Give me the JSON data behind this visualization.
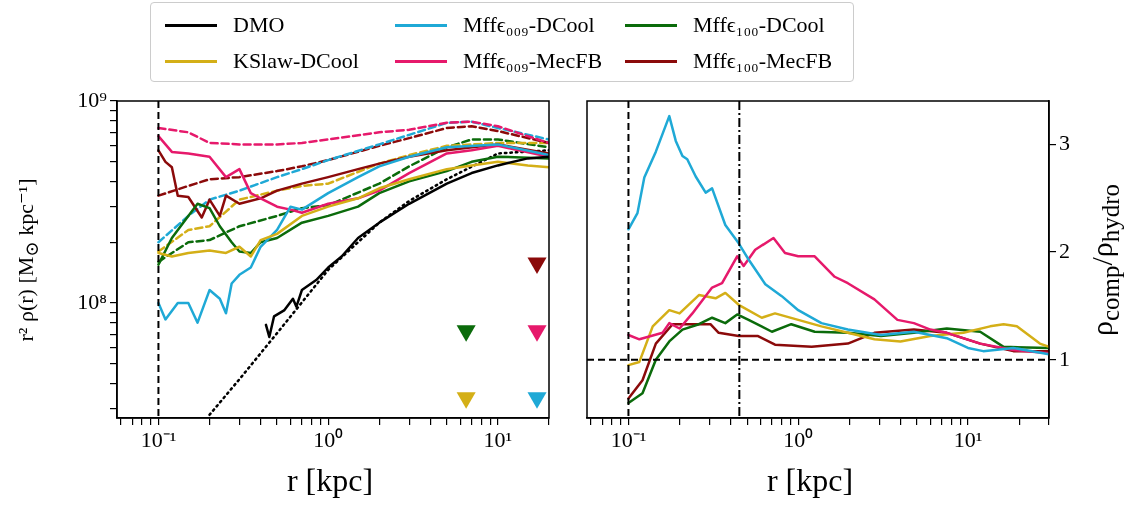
{
  "chart_data": [
    {
      "type": "line",
      "xlabel": "r [kpc]",
      "ylabel": "r² ρ(r) [M$_{⊙}$ kpc⁻¹]",
      "log": "xy",
      "grid": false,
      "legend": "top",
      "xlim": [
        0.057,
        20
      ],
      "ylim": [
        27000000.0,
        1000000000.0
      ],
      "xticks": [
        {
          "value": 0.06,
          "label": null
        },
        {
          "value": 0.07,
          "label": null
        },
        {
          "value": 0.08,
          "label": null
        },
        {
          "value": 0.09,
          "label": null
        },
        {
          "value": 0.1,
          "label": "10⁻¹"
        },
        {
          "value": 0.2,
          "label": null
        },
        {
          "value": 0.3,
          "label": null
        },
        {
          "value": 0.4,
          "label": null
        },
        {
          "value": 0.5,
          "label": null
        },
        {
          "value": 0.6,
          "label": null
        },
        {
          "value": 0.7,
          "label": null
        },
        {
          "value": 0.8,
          "label": null
        },
        {
          "value": 0.9,
          "label": null
        },
        {
          "value": 1,
          "label": "10⁰"
        },
        {
          "value": 2,
          "label": null
        },
        {
          "value": 3,
          "label": null
        },
        {
          "value": 4,
          "label": null
        },
        {
          "value": 5,
          "label": null
        },
        {
          "value": 6,
          "label": null
        },
        {
          "value": 7,
          "label": null
        },
        {
          "value": 8,
          "label": null
        },
        {
          "value": 9,
          "label": null
        },
        {
          "value": 10,
          "label": "10¹"
        },
        {
          "value": 20,
          "label": null
        }
      ],
      "yticks": [
        {
          "value": 30000000.0,
          "label": null
        },
        {
          "value": 40000000.0,
          "label": null
        },
        {
          "value": 50000000.0,
          "label": null
        },
        {
          "value": 60000000.0,
          "label": null
        },
        {
          "value": 70000000.0,
          "label": null
        },
        {
          "value": 80000000.0,
          "label": null
        },
        {
          "value": 90000000.0,
          "label": null
        },
        {
          "value": 100000000.0,
          "label": "10⁸"
        },
        {
          "value": 200000000.0,
          "label": null
        },
        {
          "value": 300000000.0,
          "label": null
        },
        {
          "value": 400000000.0,
          "label": null
        },
        {
          "value": 500000000.0,
          "label": null
        },
        {
          "value": 600000000.0,
          "label": null
        },
        {
          "value": 700000000.0,
          "label": null
        },
        {
          "value": 800000000.0,
          "label": null
        },
        {
          "value": 900000000.0,
          "label": null
        },
        {
          "value": 1000000000.0,
          "label": "10⁹"
        }
      ],
      "ref_lines": [
        {
          "axis": "x",
          "value": 0.1,
          "color": "#000000",
          "line_style": "dashed"
        }
      ],
      "series": [
        {
          "name": "DMO",
          "color": "#000000",
          "line_style": "solid",
          "x": [
            0.43,
            0.45,
            0.48,
            0.55,
            0.62,
            0.65,
            0.7,
            0.85,
            1,
            1.2,
            1.5,
            2,
            3,
            5,
            7,
            10,
            15,
            20
          ],
          "values": [
            78000000.0,
            68000000.0,
            86000000.0,
            92000000.0,
            105000000.0,
            96000000.0,
            116000000.0,
            130000000.0,
            150000000.0,
            170000000.0,
            210000000.0,
            250000000.0,
            310000000.0,
            390000000.0,
            440000000.0,
            480000000.0,
            520000000.0,
            530000000.0
          ]
        },
        {
          "name": "KSlaw-DCool",
          "color": "#d4af17",
          "line_style": "solid",
          "x": [
            0.1,
            0.12,
            0.15,
            0.2,
            0.25,
            0.3,
            0.35,
            0.4,
            0.5,
            0.7,
            1,
            1.5,
            2,
            3,
            5,
            7,
            10,
            15,
            20
          ],
          "values": [
            177000000.0,
            170000000.0,
            177000000.0,
            182000000.0,
            177000000.0,
            190000000.0,
            170000000.0,
            205000000.0,
            220000000.0,
            270000000.0,
            300000000.0,
            330000000.0,
            370000000.0,
            410000000.0,
            460000000.0,
            480000000.0,
            500000000.0,
            480000000.0,
            470000000.0
          ]
        },
        {
          "name": "Mffϵ₀₀₉-DCool",
          "color": "#1fa9d6",
          "line_style": "solid",
          "x": [
            0.1,
            0.11,
            0.13,
            0.15,
            0.17,
            0.2,
            0.23,
            0.25,
            0.27,
            0.3,
            0.35,
            0.4,
            0.5,
            0.6,
            0.7,
            1,
            1.5,
            2,
            3,
            5,
            10,
            20
          ],
          "values": [
            100000000.0,
            83000000.0,
            100000000.0,
            100000000.0,
            80000000.0,
            116000000.0,
            105000000.0,
            89000000.0,
            125000000.0,
            138000000.0,
            150000000.0,
            190000000.0,
            230000000.0,
            300000000.0,
            290000000.0,
            350000000.0,
            420000000.0,
            475000000.0,
            530000000.0,
            590000000.0,
            610000000.0,
            540000000.0
          ]
        },
        {
          "name": "Mffϵ₀₀₉-MecFB",
          "color": "#e6196b",
          "line_style": "solid",
          "x": [
            0.1,
            0.12,
            0.15,
            0.2,
            0.25,
            0.3,
            0.35,
            0.4,
            0.5,
            0.6,
            0.7,
            1,
            1.5,
            2,
            3,
            5,
            7,
            10,
            20
          ],
          "values": [
            670000000.0,
            560000000.0,
            550000000.0,
            530000000.0,
            420000000.0,
            460000000.0,
            350000000.0,
            330000000.0,
            300000000.0,
            290000000.0,
            280000000.0,
            310000000.0,
            330000000.0,
            360000000.0,
            440000000.0,
            550000000.0,
            570000000.0,
            600000000.0,
            530000000.0
          ]
        },
        {
          "name": "Mffϵ₁₀₀-DCool",
          "color": "#0b6b0b",
          "line_style": "solid",
          "x": [
            0.1,
            0.12,
            0.14,
            0.17,
            0.2,
            0.23,
            0.27,
            0.3,
            0.35,
            0.4,
            0.5,
            0.7,
            1,
            1.5,
            2,
            3,
            5,
            7,
            10,
            20
          ],
          "values": [
            155000000.0,
            210000000.0,
            250000000.0,
            310000000.0,
            295000000.0,
            240000000.0,
            200000000.0,
            180000000.0,
            177000000.0,
            200000000.0,
            210000000.0,
            250000000.0,
            270000000.0,
            300000000.0,
            350000000.0,
            400000000.0,
            450000000.0,
            500000000.0,
            530000000.0,
            520000000.0
          ]
        },
        {
          "name": "Mffϵ₁₀₀-MecFB",
          "color": "#8b0a0a",
          "line_style": "solid",
          "x": [
            0.1,
            0.11,
            0.12,
            0.13,
            0.15,
            0.18,
            0.2,
            0.23,
            0.25,
            0.3,
            0.4,
            0.5,
            0.7,
            1,
            1.5,
            2,
            3,
            5,
            10,
            20
          ],
          "values": [
            570000000.0,
            500000000.0,
            470000000.0,
            340000000.0,
            335000000.0,
            265000000.0,
            325000000.0,
            270000000.0,
            340000000.0,
            310000000.0,
            330000000.0,
            360000000.0,
            390000000.0,
            420000000.0,
            460000000.0,
            490000000.0,
            530000000.0,
            570000000.0,
            610000000.0,
            550000000.0
          ]
        },
        {
          "color": "#000000",
          "line_style": "dotted",
          "x": [
            0.2,
            0.3,
            0.5,
            1,
            2,
            3,
            5,
            10,
            20
          ],
          "values": [
            28000000.0,
            42000000.0,
            71000000.0,
            146000000.0,
            250000000.0,
            320000000.0,
            410000000.0,
            550000000.0,
            570000000.0
          ]
        },
        {
          "color": "#e6196b",
          "line_style": "dashed",
          "x": [
            0.1,
            0.15,
            0.2,
            0.3,
            0.5,
            0.7,
            1,
            2,
            3,
            5,
            7,
            10,
            15,
            20
          ],
          "values": [
            735000000.0,
            700000000.0,
            620000000.0,
            610000000.0,
            610000000.0,
            620000000.0,
            645000000.0,
            700000000.0,
            720000000.0,
            780000000.0,
            790000000.0,
            750000000.0,
            670000000.0,
            620000000.0
          ]
        },
        {
          "color": "#1fa9d6",
          "line_style": "dashed",
          "x": [
            0.1,
            0.15,
            0.2,
            0.3,
            0.5,
            0.7,
            1,
            2,
            3,
            5,
            7,
            10,
            20
          ],
          "values": [
            200000000.0,
            270000000.0,
            325000000.0,
            360000000.0,
            420000000.0,
            460000000.0,
            510000000.0,
            610000000.0,
            680000000.0,
            780000000.0,
            790000000.0,
            735000000.0,
            645000000.0
          ]
        },
        {
          "color": "#8b0a0a",
          "line_style": "dashed",
          "x": [
            0.1,
            0.15,
            0.2,
            0.3,
            0.5,
            0.7,
            1,
            2,
            3,
            5,
            7,
            10,
            20
          ],
          "values": [
            340000000.0,
            380000000.0,
            410000000.0,
            420000000.0,
            450000000.0,
            475000000.0,
            510000000.0,
            600000000.0,
            655000000.0,
            735000000.0,
            750000000.0,
            710000000.0,
            620000000.0
          ]
        },
        {
          "color": "#d4af17",
          "line_style": "dashed",
          "x": [
            0.1,
            0.15,
            0.2,
            0.3,
            0.5,
            0.7,
            1,
            2,
            3,
            5,
            10,
            20
          ],
          "values": [
            180000000.0,
            230000000.0,
            240000000.0,
            325000000.0,
            360000000.0,
            380000000.0,
            390000000.0,
            490000000.0,
            540000000.0,
            600000000.0,
            620000000.0,
            620000000.0
          ]
        },
        {
          "color": "#0b6b0b",
          "line_style": "dashed",
          "x": [
            0.1,
            0.15,
            0.2,
            0.3,
            0.5,
            0.7,
            1,
            2,
            3,
            5,
            7,
            10,
            20
          ],
          "values": [
            160000000.0,
            200000000.0,
            205000000.0,
            240000000.0,
            270000000.0,
            295000000.0,
            305000000.0,
            390000000.0,
            475000000.0,
            590000000.0,
            645000000.0,
            645000000.0,
            590000000.0
          ]
        },
        {
          "type": "scatter",
          "marker": "triangle",
          "color": "#0b6b0b",
          "x": [
            6.5
          ],
          "values": [
            73000000.0
          ]
        },
        {
          "type": "scatter",
          "marker": "triangle",
          "color": "#d4af17",
          "x": [
            6.5
          ],
          "values": [
            34000000.0
          ]
        },
        {
          "type": "scatter",
          "marker": "triangle",
          "color": "#8b0a0a",
          "x": [
            17
          ],
          "values": [
            158000000.0
          ]
        },
        {
          "type": "scatter",
          "marker": "triangle",
          "color": "#e6196b",
          "x": [
            17
          ],
          "values": [
            73000000.0
          ]
        },
        {
          "type": "scatter",
          "marker": "triangle",
          "color": "#1fa9d6",
          "x": [
            17
          ],
          "values": [
            34000000.0
          ]
        }
      ]
    },
    {
      "type": "line",
      "xlabel": "r [kpc]",
      "ylabel": "ρ$_{comp}$/ρ$_{hydro}$",
      "log": "x",
      "grid": false,
      "xlim": [
        0.057,
        30
      ],
      "ylim": [
        0.46,
        3.4
      ],
      "xticks": [
        {
          "value": 0.06,
          "label": null
        },
        {
          "value": 0.07,
          "label": null
        },
        {
          "value": 0.08,
          "label": null
        },
        {
          "value": 0.09,
          "label": null
        },
        {
          "value": 0.1,
          "label": "10⁻¹"
        },
        {
          "value": 0.2,
          "label": null
        },
        {
          "value": 0.3,
          "label": null
        },
        {
          "value": 0.4,
          "label": null
        },
        {
          "value": 0.5,
          "label": null
        },
        {
          "value": 0.6,
          "label": null
        },
        {
          "value": 0.7,
          "label": null
        },
        {
          "value": 0.8,
          "label": null
        },
        {
          "value": 0.9,
          "label": null
        },
        {
          "value": 1,
          "label": "10⁰"
        },
        {
          "value": 2,
          "label": null
        },
        {
          "value": 3,
          "label": null
        },
        {
          "value": 4,
          "label": null
        },
        {
          "value": 5,
          "label": null
        },
        {
          "value": 6,
          "label": null
        },
        {
          "value": 7,
          "label": null
        },
        {
          "value": 8,
          "label": null
        },
        {
          "value": 9,
          "label": null
        },
        {
          "value": 10,
          "label": "10¹"
        },
        {
          "value": 20,
          "label": null
        },
        {
          "value": 30,
          "label": null
        }
      ],
      "yticks": [
        1,
        2,
        3
      ],
      "ref_lines": [
        {
          "axis": "x",
          "value": 0.1,
          "color": "#000000",
          "line_style": "dashed"
        },
        {
          "axis": "x",
          "value": 0.45,
          "color": "#000000",
          "line_style": "dashdot"
        },
        {
          "axis": "y",
          "value": 1,
          "color": "#000000",
          "line_style": "dashed"
        }
      ],
      "series": [
        {
          "color": "#1fa9d6",
          "x": [
            0.1,
            0.113,
            0.124,
            0.145,
            0.174,
            0.19,
            0.208,
            0.222,
            0.249,
            0.285,
            0.311,
            0.372,
            0.446,
            0.51,
            0.64,
            0.8,
            1,
            1.37,
            1.96,
            3.07,
            4.8,
            7.5,
            10,
            12.3,
            18.5,
            30
          ],
          "values": [
            2.21,
            2.36,
            2.69,
            2.93,
            3.26,
            3.03,
            2.89,
            2.86,
            2.7,
            2.55,
            2.59,
            2.25,
            2.08,
            1.93,
            1.7,
            1.59,
            1.46,
            1.34,
            1.28,
            1.23,
            1.26,
            1.2,
            1.11,
            1.08,
            1.11,
            1.05
          ]
        },
        {
          "color": "#e6196b",
          "x": [
            0.1,
            0.116,
            0.159,
            0.174,
            0.2,
            0.238,
            0.311,
            0.356,
            0.437,
            0.477,
            0.558,
            0.715,
            0.836,
            1,
            1.25,
            1.64,
            1.96,
            2.81,
            3.84,
            4.8,
            6,
            7.5,
            11.8,
            18.5,
            30
          ],
          "values": [
            1.23,
            1.19,
            1.25,
            1.34,
            1.29,
            1.43,
            1.67,
            1.71,
            1.96,
            1.87,
            2.02,
            2.13,
            1.99,
            1.96,
            1.96,
            1.77,
            1.71,
            1.56,
            1.37,
            1.34,
            1.28,
            1.25,
            1.15,
            1.09,
            1.06
          ]
        },
        {
          "color": "#d4af17",
          "x": [
            0.1,
            0.116,
            0.139,
            0.174,
            0.2,
            0.26,
            0.326,
            0.372,
            0.446,
            0.61,
            0.73,
            1,
            1.37,
            1.96,
            2.81,
            4,
            6,
            9.4,
            13.5,
            16.2,
            19.4,
            26.5,
            30
          ],
          "values": [
            0.95,
            0.98,
            1.31,
            1.46,
            1.43,
            1.6,
            1.57,
            1.62,
            1.51,
            1.39,
            1.43,
            1.37,
            1.31,
            1.25,
            1.19,
            1.17,
            1.22,
            1.25,
            1.31,
            1.33,
            1.31,
            1.15,
            1.12
          ]
        },
        {
          "color": "#0b6b0b",
          "x": [
            0.1,
            0.121,
            0.145,
            0.174,
            0.208,
            0.26,
            0.311,
            0.372,
            0.437,
            0.51,
            0.7,
            0.91,
            1.25,
            1.96,
            3.07,
            4.8,
            7.5,
            11.8,
            16.2,
            30
          ],
          "values": [
            0.6,
            0.69,
            1,
            1.17,
            1.28,
            1.33,
            1.39,
            1.34,
            1.42,
            1.37,
            1.26,
            1.33,
            1.26,
            1.25,
            1.22,
            1.25,
            1.29,
            1.26,
            1.12,
            1.11
          ]
        },
        {
          "color": "#8b0a0a",
          "x": [
            0.1,
            0.121,
            0.145,
            0.182,
            0.249,
            0.304,
            0.34,
            0.446,
            0.58,
            0.73,
            1.2,
            1.96,
            2.81,
            4.8,
            7.5,
            11.8,
            18.5,
            30
          ],
          "values": [
            0.64,
            0.81,
            1.15,
            1.33,
            1.33,
            1.33,
            1.25,
            1.22,
            1.22,
            1.14,
            1.12,
            1.15,
            1.25,
            1.28,
            1.25,
            1.15,
            1.08,
            1.08
          ]
        }
      ]
    }
  ]
}
